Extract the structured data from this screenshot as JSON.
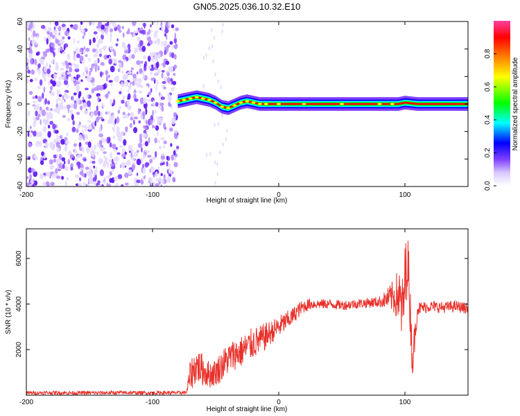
{
  "chart_data": [
    {
      "type": "heatmap",
      "title": "GN05.2025.036.10.32.E10",
      "xlabel": "Height of straight line (km)",
      "ylabel": "Frequency (Hz)",
      "xlim": [
        -200,
        150
      ],
      "ylim": [
        -60,
        60
      ],
      "xticks": [
        -200,
        -100,
        0,
        100
      ],
      "yticks": [
        -60,
        -40,
        -20,
        0,
        20,
        40,
        60
      ],
      "noise_region_x": [
        -200,
        -80
      ],
      "signal_ridge": {
        "x": [
          -80,
          -75,
          -70,
          -65,
          -60,
          -55,
          -50,
          -45,
          -40,
          -35,
          -30,
          -25,
          -20,
          -15,
          -10,
          0,
          20,
          50,
          80,
          90,
          95,
          100,
          110,
          130,
          150
        ],
        "frequency": [
          2,
          3,
          4,
          5,
          4,
          3,
          1,
          -2,
          -3,
          -1,
          1,
          2,
          1,
          0,
          0,
          0,
          0,
          0,
          0,
          0,
          0,
          1,
          0,
          0,
          0
        ]
      },
      "colorbar": {
        "label": "Normalized spectral amplitude",
        "range": [
          0,
          1
        ],
        "ticks": [
          0.0,
          0.2,
          0.4,
          0.6,
          0.8
        ],
        "colormap": [
          "#e0d0ff",
          "#8040ff",
          "#0000ff",
          "#00ffff",
          "#00ff00",
          "#ffff00",
          "#ff8000",
          "#ff0000",
          "#ff40a0"
        ]
      },
      "grid": false
    },
    {
      "type": "line",
      "title": "",
      "xlabel": "Height of straight line (km)",
      "ylabel": "SNR (10 * v/v)",
      "xlim": [
        -200,
        150
      ],
      "ylim": [
        0,
        7300
      ],
      "xticks": [
        -200,
        -100,
        0,
        100
      ],
      "yticks": [
        2000,
        4000,
        6000
      ],
      "series": [
        {
          "color": "#e8302a",
          "x": [
            -200,
            -180,
            -160,
            -140,
            -120,
            -100,
            -90,
            -80,
            -73,
            -70,
            -65,
            -60,
            -55,
            -50,
            -45,
            -40,
            -35,
            -30,
            -25,
            -20,
            -15,
            -10,
            -5,
            0,
            5,
            10,
            15,
            20,
            25,
            30,
            40,
            50,
            60,
            70,
            80,
            85,
            90,
            95,
            98,
            100,
            102,
            104,
            106,
            110,
            120,
            130,
            140,
            150
          ],
          "values": [
            100,
            110,
            100,
            105,
            110,
            100,
            110,
            105,
            120,
            900,
            1300,
            1100,
            900,
            1000,
            1300,
            1600,
            1800,
            1900,
            2100,
            2300,
            2400,
            2600,
            2800,
            3000,
            3200,
            3400,
            3700,
            3900,
            4000,
            4000,
            4000,
            3950,
            4000,
            4050,
            4100,
            4200,
            4300,
            4400,
            3600,
            4800,
            6200,
            4000,
            1500,
            3800,
            3900,
            3850,
            3900,
            3800
          ],
          "noise_amplitude": [
            80,
            80,
            80,
            80,
            80,
            80,
            80,
            80,
            80,
            700,
            800,
            700,
            600,
            600,
            700,
            700,
            700,
            700,
            700,
            700,
            650,
            600,
            500,
            500,
            450,
            400,
            350,
            300,
            250,
            220,
            220,
            220,
            220,
            220,
            250,
            400,
            700,
            1200,
            1600,
            1800,
            1500,
            1200,
            900,
            300,
            250,
            250,
            250,
            250
          ]
        }
      ],
      "grid": false
    }
  ]
}
